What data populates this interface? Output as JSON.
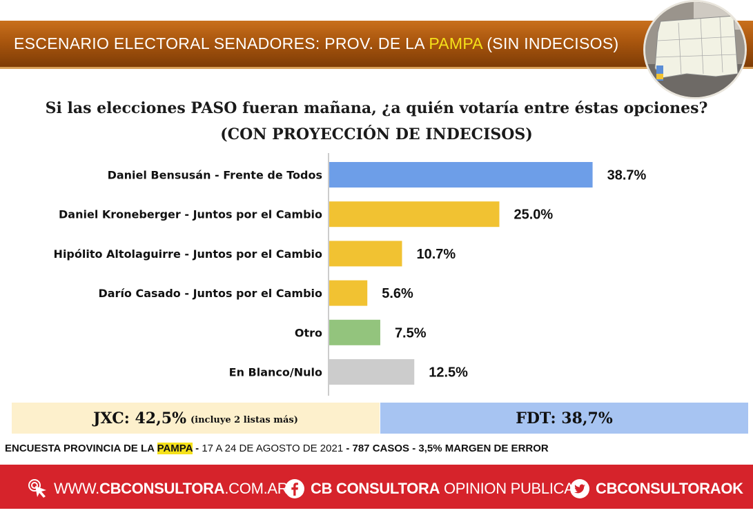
{
  "header": {
    "title_pre": "ESCENARIO ELECTORAL SENADORES: PROV. DE LA ",
    "title_highlight": "PAMPA",
    "title_post": " (SIN INDECISOS)"
  },
  "question": {
    "line1": "Si las elecciones PASO fueran mañana, ¿a quién votaría entre éstas opciones?",
    "line2": "(CON PROYECCIÓN DE INDECISOS)"
  },
  "chart_data": {
    "type": "bar",
    "orientation": "horizontal",
    "categories": [
      "Daniel Bensusán - Frente de Todos",
      "Daniel Kroneberger - Juntos por el Cambio",
      "Hipólito Altolaguirre - Juntos por el Cambio",
      "Darío Casado - Juntos por el Cambio",
      "Otro",
      "En Blanco/Nulo"
    ],
    "values": [
      38.7,
      25.0,
      10.7,
      5.6,
      7.5,
      12.5
    ],
    "value_labels": [
      "38.7%",
      "25.0%",
      "10.7%",
      "5.6%",
      "7.5%",
      "12.5%"
    ],
    "colors": [
      "#6d9ee8",
      "#f1c232",
      "#f1c232",
      "#f1c232",
      "#93c47d",
      "#cccccc"
    ],
    "xlim": [
      0,
      40
    ],
    "grid": false,
    "legend": "none"
  },
  "summary": {
    "jxc_label": "JXC: 42,5%",
    "jxc_note": "(incluye 2 listas más)",
    "fdt_label": "FDT: 38,7%"
  },
  "footnote": {
    "pre": "ENCUESTA PROVINCIA DE LA ",
    "highlight": "PAMPA",
    "dash1": " - ",
    "dates": "17 A 24 DE AGOSTO DE 2021",
    "dash2": " - ",
    "rest": "787 CASOS - 3,5% MARGEN DE ERROR"
  },
  "footer": {
    "web_prefix": "WWW.",
    "web_bold": "CBCONSULTORA",
    "web_suffix": ".COM.AR",
    "fb_bold": "CB CONSULTORA",
    "fb_light": " OPINION PUBLICA",
    "tw_bold": "CBCONSULTORAOK"
  },
  "icons": [
    "cursor-click-icon",
    "facebook-icon",
    "twitter-icon"
  ]
}
